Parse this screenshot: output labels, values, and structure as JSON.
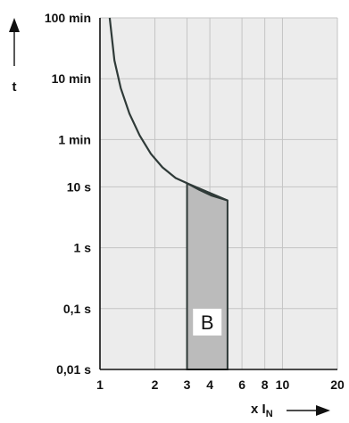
{
  "chart_data": {
    "type": "line",
    "title": "",
    "ylabel": "t",
    "xlabel": "x I",
    "xlabel_subscript": "N",
    "x_scale": "log",
    "y_scale": "log",
    "xlim": [
      1,
      20
    ],
    "ylim_seconds": [
      0.01,
      6000
    ],
    "grid": true,
    "y_ticks": [
      {
        "label": "100 min",
        "seconds": 6000
      },
      {
        "label": "10 min",
        "seconds": 600
      },
      {
        "label": "1 min",
        "seconds": 60
      },
      {
        "label": "10 s",
        "seconds": 10
      },
      {
        "label": "1 s",
        "seconds": 1
      },
      {
        "label": "0,1 s",
        "seconds": 0.1
      },
      {
        "label": "0,01 s",
        "seconds": 0.01
      }
    ],
    "x_ticks": [
      {
        "label": "1",
        "value": 1
      },
      {
        "label": "2",
        "value": 2
      },
      {
        "label": "3",
        "value": 3
      },
      {
        "label": "4",
        "value": 4
      },
      {
        "label": "6",
        "value": 6
      },
      {
        "label": "8",
        "value": 8
      },
      {
        "label": "10",
        "value": 10
      },
      {
        "label": "20",
        "value": 20
      }
    ],
    "series": [
      {
        "points": [
          {
            "x": 1.13,
            "y": 6000
          },
          {
            "x": 1.2,
            "y": 1200
          },
          {
            "x": 1.3,
            "y": 420
          },
          {
            "x": 1.45,
            "y": 160
          },
          {
            "x": 1.65,
            "y": 70
          },
          {
            "x": 1.9,
            "y": 35
          },
          {
            "x": 2.2,
            "y": 21
          },
          {
            "x": 2.6,
            "y": 14
          },
          {
            "x": 3.0,
            "y": 11.5
          },
          {
            "x": 3.5,
            "y": 9
          },
          {
            "x": 4.1,
            "y": 7.2
          },
          {
            "x": 5.0,
            "y": 6.0
          }
        ]
      }
    ],
    "tripping_region": {
      "label": "B",
      "x_from": 3,
      "x_to": 5,
      "y_bottom_seconds": 0.01,
      "top_left_seconds": 11.5,
      "top_right_seconds": 6.0
    },
    "colors": {
      "plot_background": "#ececec",
      "grid": "#c4c4c4",
      "region_fill": "#bbbbbb",
      "curve": "#2f3a38",
      "axis": "#111111"
    }
  }
}
